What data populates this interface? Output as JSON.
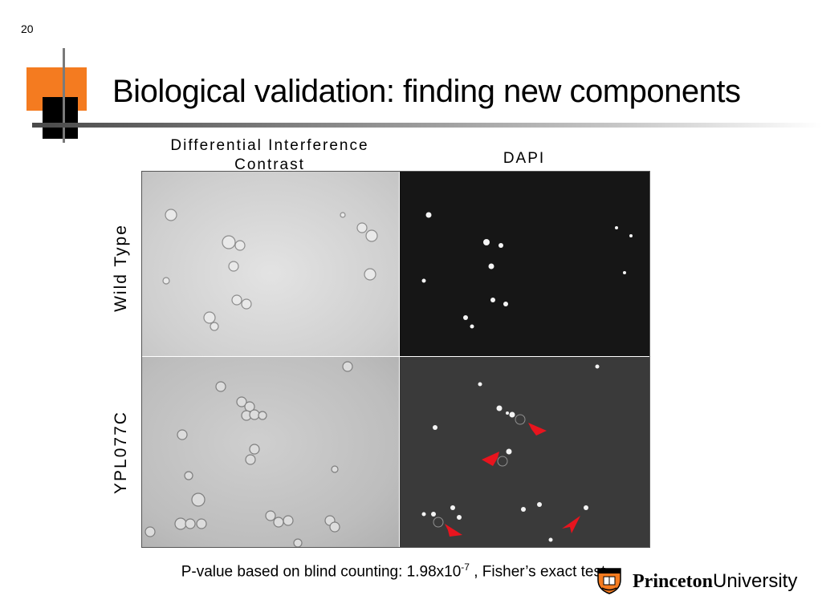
{
  "slide": {
    "number": "20",
    "title": "Biological validation: finding new components",
    "accent_orange": "#f47b20"
  },
  "figure": {
    "column_headers": [
      "Differential Interference Contrast",
      "DAPI"
    ],
    "row_headers": [
      "Wild Type",
      "YPL077C"
    ],
    "arrow_color": "#e8141e"
  },
  "caption": {
    "text_before": "P-value based on blind counting: 1.98x10",
    "exponent": "-7",
    "text_after": " , Fisher’s exact test"
  },
  "logo": {
    "name_bold": "Princeton",
    "name_regular": "University",
    "icon": "princeton-shield-icon"
  }
}
